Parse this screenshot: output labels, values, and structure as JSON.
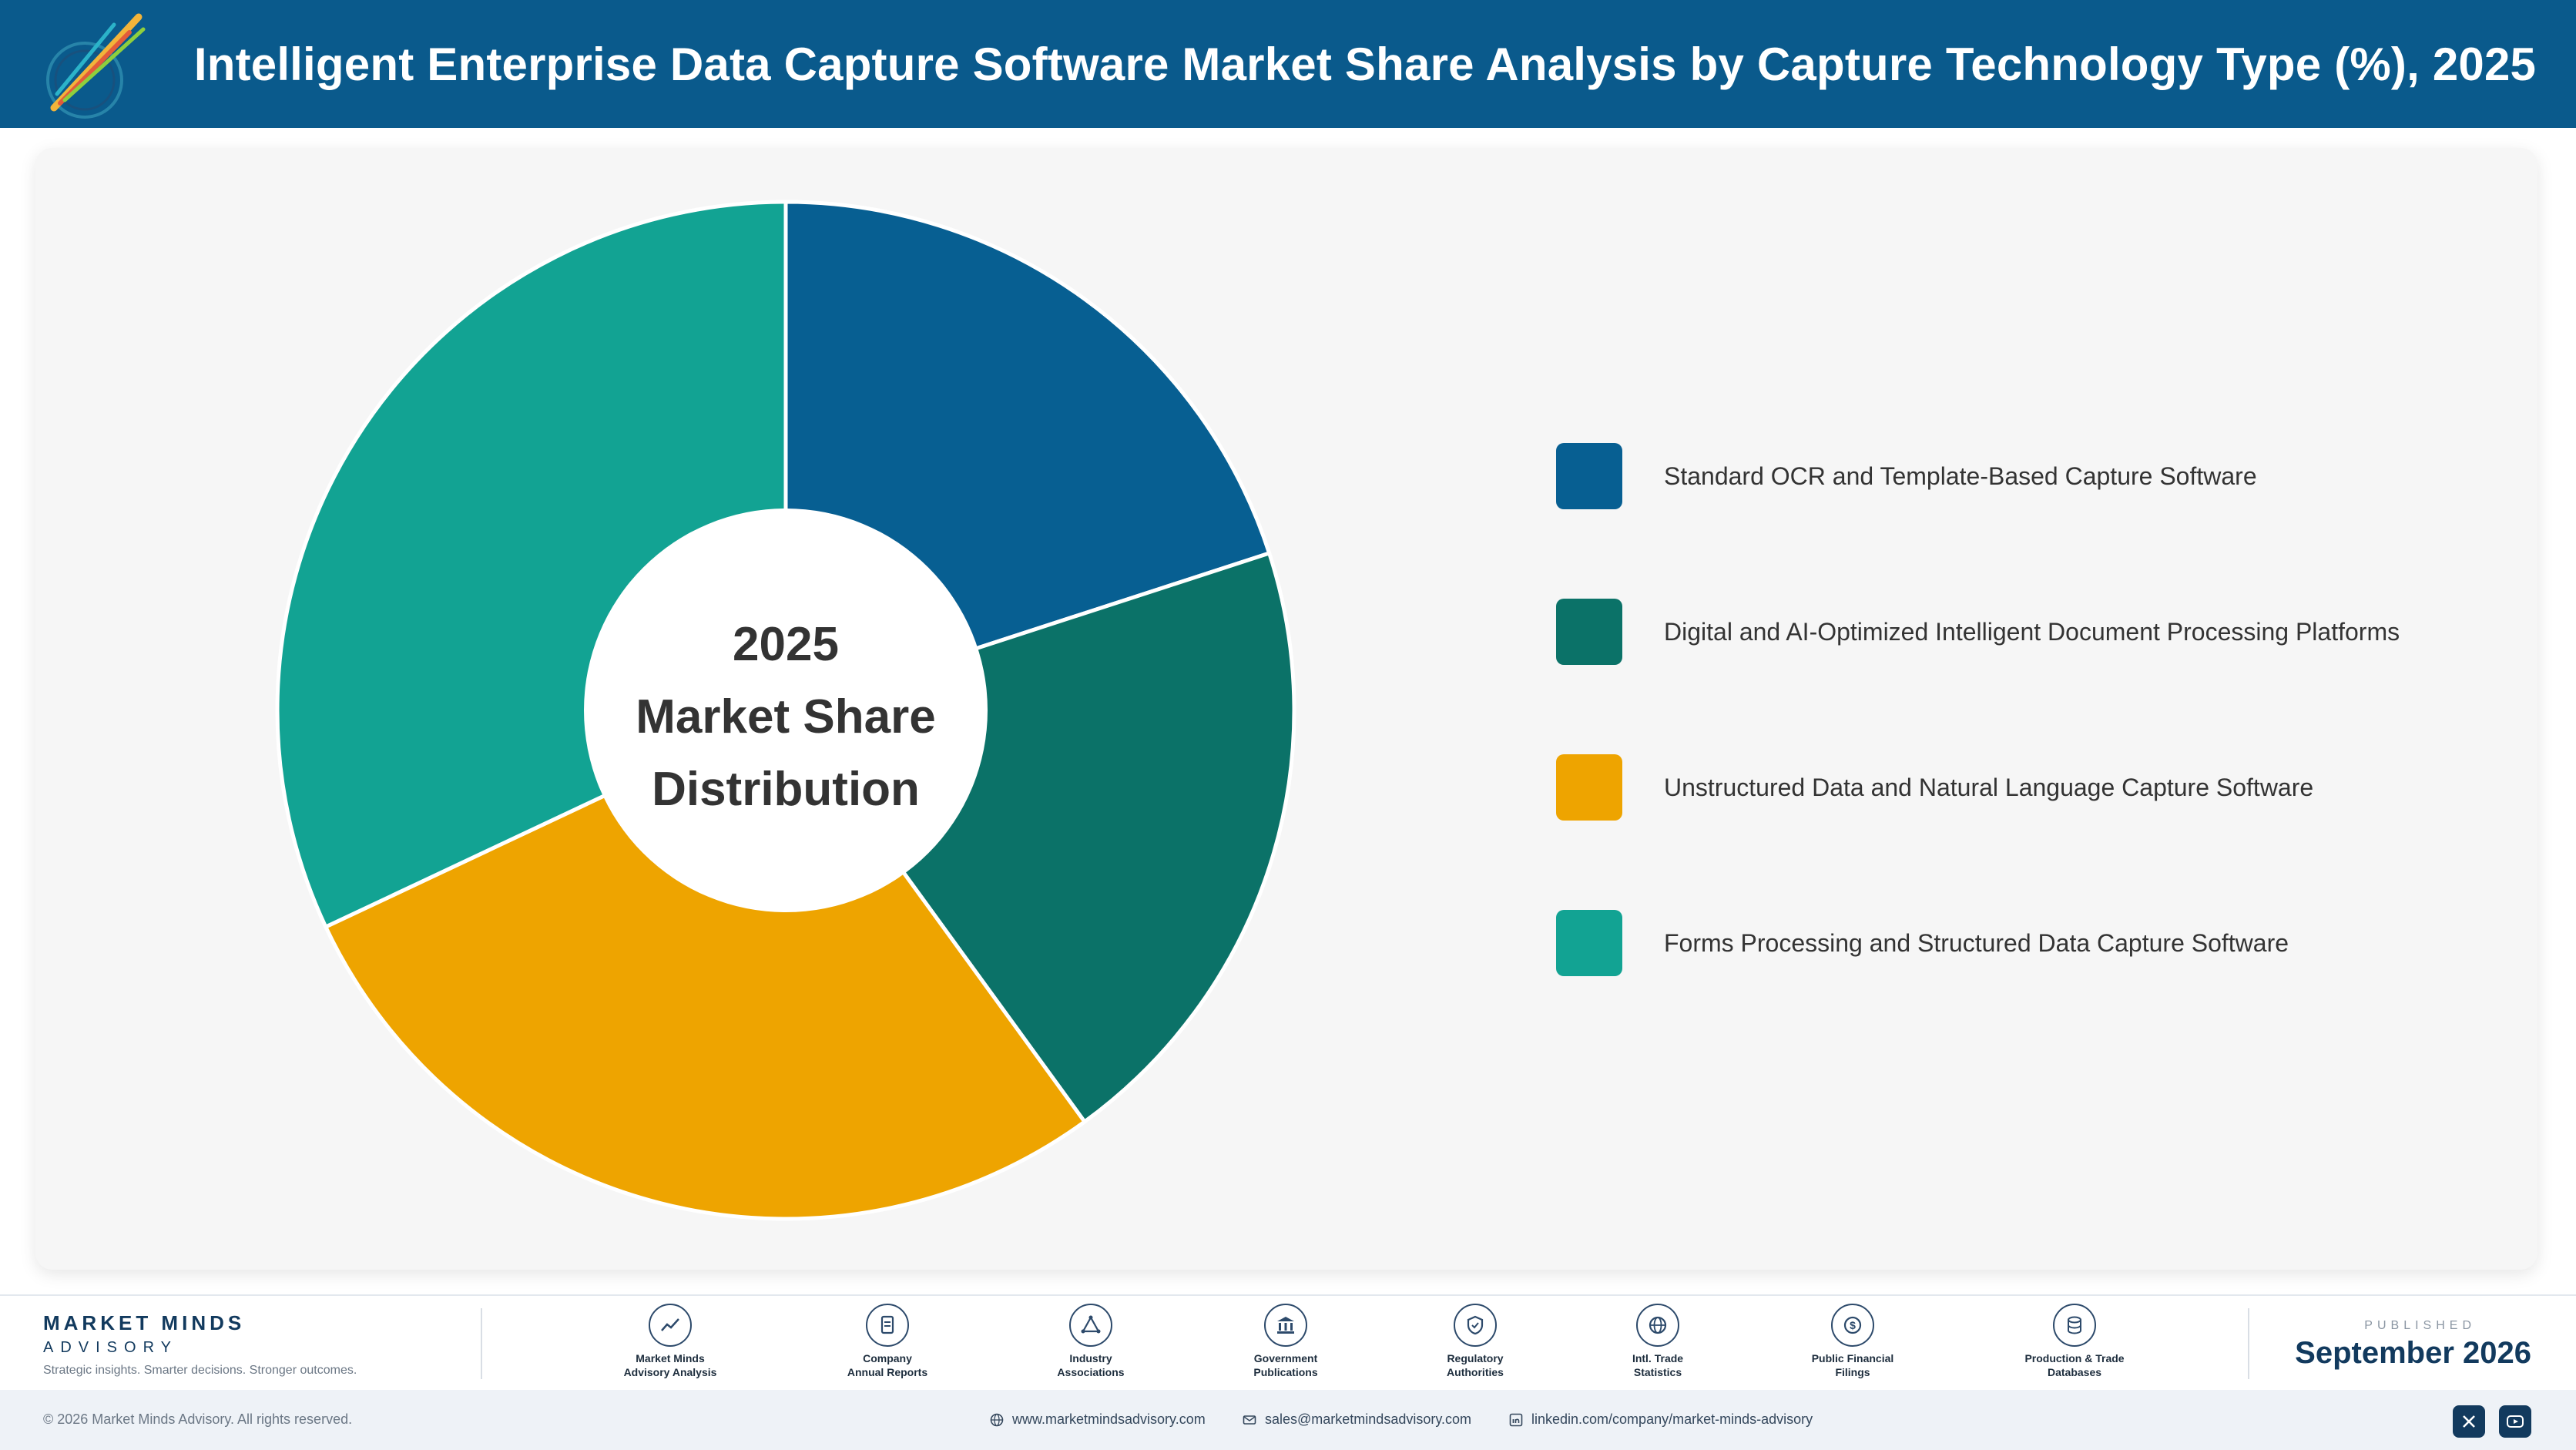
{
  "header": {
    "title": "Intelligent Enterprise Data Capture Software Market Share Analysis by Capture Technology Type (%), 2025"
  },
  "chart_data": {
    "type": "pie",
    "variant": "donut",
    "center_text": [
      "2025",
      "Market Share",
      "Distribution"
    ],
    "categories": [
      "Standard OCR and Template-Based Capture Software",
      "Digital and AI-Optimized Intelligent Document Processing Platforms",
      "Unstructured Data and Natural Language Capture Software",
      "Forms Processing and Structured Data Capture Software"
    ],
    "values": [
      20,
      20,
      28,
      32
    ],
    "colors": [
      "#075f92",
      "#0b7268",
      "#eea400",
      "#12a393"
    ],
    "legend_position": "right"
  },
  "footer": {
    "brand_name": "MARKET MINDS",
    "brand_sub": "ADVISORY",
    "tagline": "Strategic insights. Smarter decisions. Stronger outcomes.",
    "sources": [
      {
        "line1": "Market Minds",
        "line2": "Advisory Analysis",
        "icon": "trend-icon"
      },
      {
        "line1": "Company",
        "line2": "Annual Reports",
        "icon": "document-icon"
      },
      {
        "line1": "Industry",
        "line2": "Associations",
        "icon": "network-icon"
      },
      {
        "line1": "Government",
        "line2": "Publications",
        "icon": "building-icon"
      },
      {
        "line1": "Regulatory",
        "line2": "Authorities",
        "icon": "shield-icon"
      },
      {
        "line1": "Intl. Trade",
        "line2": "Statistics",
        "icon": "globe-icon"
      },
      {
        "line1": "Public Financial",
        "line2": "Filings",
        "icon": "coin-icon"
      },
      {
        "line1": "Production & Trade",
        "line2": "Databases",
        "icon": "database-icon"
      }
    ],
    "published_caption": "PUBLISHED",
    "published_date": "September 2026"
  },
  "bottom_bar": {
    "copyright": "© 2026 Market Minds Advisory. All rights reserved.",
    "website": "www.marketmindsadvisory.com",
    "email": "sales@marketmindsadvisory.com",
    "linkedin": "linkedin.com/company/market-minds-advisory"
  }
}
